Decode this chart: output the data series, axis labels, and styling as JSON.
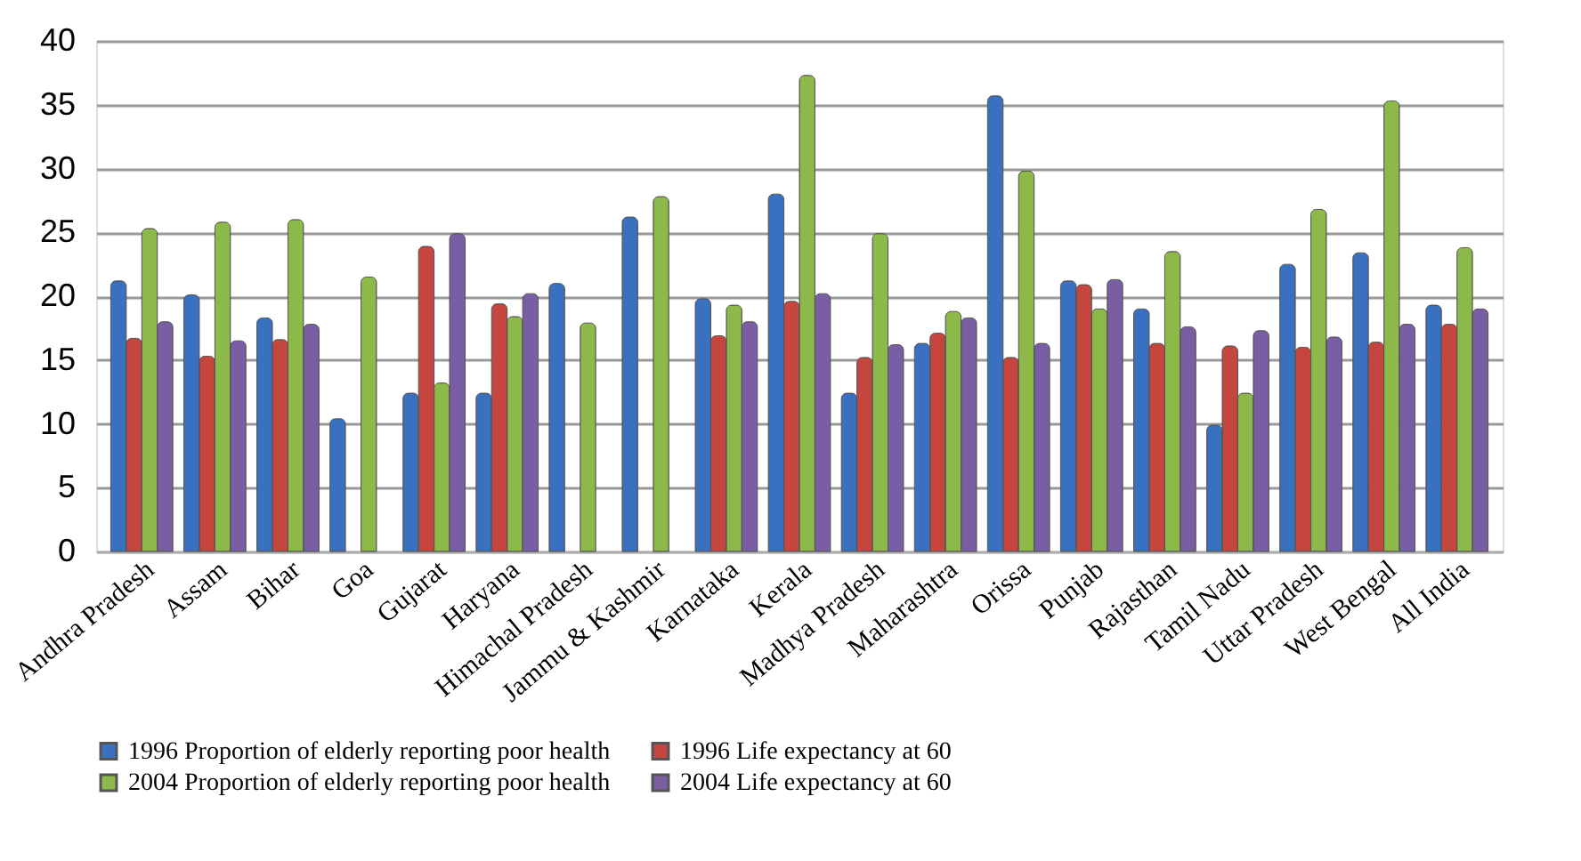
{
  "chart_data": {
    "type": "bar",
    "categories": [
      "Andhra Pradesh",
      "Assam",
      "Bihar",
      "Goa",
      "Gujarat",
      "Haryana",
      "Himachal Pradesh",
      "Jammu & Kashmir",
      "Karnataka",
      "Kerala",
      "Madhya Pradesh",
      "Maharashtra",
      "Orissa",
      "Punjab",
      "Rajasthan",
      "Tamil Nadu",
      "Uttar Pradesh",
      "West Bengal",
      "All India"
    ],
    "series": [
      {
        "name": "1996 Proportion of elderly reporting poor health",
        "color": "#3a70c0",
        "values": [
          21.2,
          20.1,
          18.3,
          10.4,
          12.4,
          12.4,
          21,
          26.2,
          19.8,
          28,
          12.4,
          16.3,
          35.7,
          21.2,
          19,
          9.9,
          22.5,
          23.4,
          19.3
        ]
      },
      {
        "name": "1996 Life expectancy at 60",
        "color": "#c4463f",
        "values": [
          16.7,
          15.3,
          16.6,
          null,
          23.9,
          19.4,
          null,
          null,
          16.9,
          19.6,
          15.2,
          17.1,
          15.2,
          20.9,
          16.3,
          16.1,
          16,
          16.4,
          17.8
        ]
      },
      {
        "name": "2004 Proportion of elderly reporting poor health",
        "color": "#8db84a",
        "values": [
          25.3,
          25.8,
          26,
          21.5,
          13.2,
          18.4,
          17.9,
          27.8,
          19.3,
          37.3,
          24.9,
          18.8,
          29.8,
          19,
          23.5,
          12.4,
          26.8,
          35.3,
          23.8
        ]
      },
      {
        "name": "2004 Life expectancy at 60",
        "color": "#7a5ea3",
        "values": [
          18,
          16.5,
          17.8,
          null,
          24.9,
          20.2,
          null,
          null,
          18,
          20.2,
          16.2,
          18.3,
          16.3,
          21.3,
          17.6,
          17.3,
          16.8,
          17.8,
          19
        ]
      }
    ],
    "ylim": [
      0,
      40
    ],
    "yticks": [
      0,
      5,
      10,
      15,
      20,
      25,
      30,
      35,
      40
    ],
    "grid": "y",
    "legend": "bottom"
  }
}
